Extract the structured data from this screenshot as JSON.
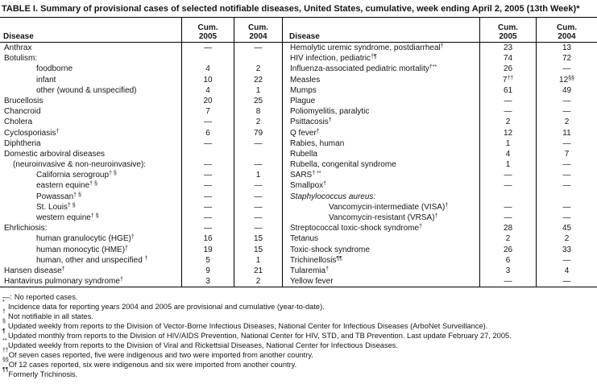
{
  "title": "TABLE I. Summary of provisional cases of selected notifiable diseases, United States, cumulative, week ending April 2, 2005 (13th Week)*",
  "header": {
    "disease": "Disease",
    "cum": "Cum.",
    "y2005": "2005",
    "y2004": "2004"
  },
  "left_rows": [
    {
      "label": "Anthrax",
      "sup": "",
      "indent": 0,
      "italic": false,
      "v2005": "—",
      "v2005_sup": "",
      "v2004": "—",
      "v2004_sup": ""
    },
    {
      "label": "Botulism:",
      "sup": "",
      "indent": 0,
      "italic": false,
      "v2005": "",
      "v2005_sup": "",
      "v2004": "",
      "v2004_sup": ""
    },
    {
      "label": "foodborne",
      "sup": "",
      "indent": 2,
      "italic": false,
      "v2005": "4",
      "v2005_sup": "",
      "v2004": "2",
      "v2004_sup": ""
    },
    {
      "label": "infant",
      "sup": "",
      "indent": 2,
      "italic": false,
      "v2005": "10",
      "v2005_sup": "",
      "v2004": "22",
      "v2004_sup": ""
    },
    {
      "label": "other (wound & unspecified)",
      "sup": "",
      "indent": 2,
      "italic": false,
      "v2005": "4",
      "v2005_sup": "",
      "v2004": "1",
      "v2004_sup": ""
    },
    {
      "label": "Brucellosis",
      "sup": "",
      "indent": 0,
      "italic": false,
      "v2005": "20",
      "v2005_sup": "",
      "v2004": "25",
      "v2004_sup": ""
    },
    {
      "label": "Chancroid",
      "sup": "",
      "indent": 0,
      "italic": false,
      "v2005": "7",
      "v2005_sup": "",
      "v2004": "8",
      "v2004_sup": ""
    },
    {
      "label": "Cholera",
      "sup": "",
      "indent": 0,
      "italic": false,
      "v2005": "—",
      "v2005_sup": "",
      "v2004": "2",
      "v2004_sup": ""
    },
    {
      "label": "Cyclosporiasis",
      "sup": "†",
      "indent": 0,
      "italic": false,
      "v2005": "6",
      "v2005_sup": "",
      "v2004": "79",
      "v2004_sup": ""
    },
    {
      "label": "Diphtheria",
      "sup": "",
      "indent": 0,
      "italic": false,
      "v2005": "—",
      "v2005_sup": "",
      "v2004": "—",
      "v2004_sup": ""
    },
    {
      "label": "Domestic arboviral diseases",
      "sup": "",
      "indent": 0,
      "italic": false,
      "v2005": "",
      "v2005_sup": "",
      "v2004": "",
      "v2004_sup": ""
    },
    {
      "label": "(neuroinvasive & non-neuroinvasive):",
      "sup": "",
      "indent": 1,
      "italic": false,
      "v2005": "—",
      "v2005_sup": "",
      "v2004": "—",
      "v2004_sup": ""
    },
    {
      "label": "California serogroup",
      "sup": "† §",
      "indent": 2,
      "italic": false,
      "v2005": "—",
      "v2005_sup": "",
      "v2004": "1",
      "v2004_sup": ""
    },
    {
      "label": "eastern equine",
      "sup": "† §",
      "indent": 2,
      "italic": false,
      "v2005": "—",
      "v2005_sup": "",
      "v2004": "—",
      "v2004_sup": ""
    },
    {
      "label": "Powassan",
      "sup": "† §",
      "indent": 2,
      "italic": false,
      "v2005": "—",
      "v2005_sup": "",
      "v2004": "—",
      "v2004_sup": ""
    },
    {
      "label": "St. Louis",
      "sup": "† §",
      "indent": 2,
      "italic": false,
      "v2005": "—",
      "v2005_sup": "",
      "v2004": "—",
      "v2004_sup": ""
    },
    {
      "label": "western equine",
      "sup": "† §",
      "indent": 2,
      "italic": false,
      "v2005": "—",
      "v2005_sup": "",
      "v2004": "—",
      "v2004_sup": ""
    },
    {
      "label": "Ehrlichiosis:",
      "sup": "",
      "indent": 0,
      "italic": false,
      "v2005": "—",
      "v2005_sup": "",
      "v2004": "—",
      "v2004_sup": ""
    },
    {
      "label": "human granulocytic (HGE)",
      "sup": "†",
      "indent": 2,
      "italic": false,
      "v2005": "16",
      "v2005_sup": "",
      "v2004": "15",
      "v2004_sup": ""
    },
    {
      "label": "human monocytic (HME)",
      "sup": "†",
      "indent": 2,
      "italic": false,
      "v2005": "19",
      "v2005_sup": "",
      "v2004": "15",
      "v2004_sup": ""
    },
    {
      "label": "human, other and unspecified ",
      "sup": "†",
      "indent": 2,
      "italic": false,
      "v2005": "5",
      "v2005_sup": "",
      "v2004": "1",
      "v2004_sup": ""
    },
    {
      "label": "Hansen disease",
      "sup": "†",
      "indent": 0,
      "italic": false,
      "v2005": "9",
      "v2005_sup": "",
      "v2004": "21",
      "v2004_sup": ""
    },
    {
      "label": "Hantavirus pulmonary syndrome",
      "sup": "†",
      "indent": 0,
      "italic": false,
      "v2005": "3",
      "v2005_sup": "",
      "v2004": "2",
      "v2004_sup": ""
    }
  ],
  "right_rows": [
    {
      "label": "Hemolytic uremic syndrome, postdiarrheal",
      "sup": "†",
      "indent": 0,
      "italic": false,
      "v2005": "23",
      "v2005_sup": "",
      "v2004": "13",
      "v2004_sup": ""
    },
    {
      "label": "HIV infection, pediatric",
      "sup": "†¶",
      "indent": 0,
      "italic": false,
      "v2005": "74",
      "v2005_sup": "",
      "v2004": "72",
      "v2004_sup": ""
    },
    {
      "label": "Influenza-associated pediatric mortality",
      "sup": "†**",
      "indent": 0,
      "italic": false,
      "v2005": "26",
      "v2005_sup": "",
      "v2004": "—",
      "v2004_sup": ""
    },
    {
      "label": "Measles",
      "sup": "",
      "indent": 0,
      "italic": false,
      "v2005": "7",
      "v2005_sup": "††",
      "v2004": "12",
      "v2004_sup": "§§"
    },
    {
      "label": "Mumps",
      "sup": "",
      "indent": 0,
      "italic": false,
      "v2005": "61",
      "v2005_sup": "",
      "v2004": "49",
      "v2004_sup": ""
    },
    {
      "label": "Plague",
      "sup": "",
      "indent": 0,
      "italic": false,
      "v2005": "—",
      "v2005_sup": "",
      "v2004": "—",
      "v2004_sup": ""
    },
    {
      "label": "Poliomyelitis, paralytic",
      "sup": "",
      "indent": 0,
      "italic": false,
      "v2005": "—",
      "v2005_sup": "",
      "v2004": "—",
      "v2004_sup": ""
    },
    {
      "label": "Psittacosis",
      "sup": "†",
      "indent": 0,
      "italic": false,
      "v2005": "2",
      "v2005_sup": "",
      "v2004": "2",
      "v2004_sup": ""
    },
    {
      "label": "Q fever",
      "sup": "†",
      "indent": 0,
      "italic": false,
      "v2005": "12",
      "v2005_sup": "",
      "v2004": "11",
      "v2004_sup": ""
    },
    {
      "label": "Rabies, human",
      "sup": "",
      "indent": 0,
      "italic": false,
      "v2005": "1",
      "v2005_sup": "",
      "v2004": "—",
      "v2004_sup": ""
    },
    {
      "label": "Rubella",
      "sup": "",
      "indent": 0,
      "italic": false,
      "v2005": "4",
      "v2005_sup": "",
      "v2004": "7",
      "v2004_sup": ""
    },
    {
      "label": "Rubella, congenital syndrome",
      "sup": "",
      "indent": 0,
      "italic": false,
      "v2005": "1",
      "v2005_sup": "",
      "v2004": "—",
      "v2004_sup": ""
    },
    {
      "label": "SARS",
      "sup": "† **",
      "indent": 0,
      "italic": false,
      "v2005": "—",
      "v2005_sup": "",
      "v2004": "—",
      "v2004_sup": ""
    },
    {
      "label": "Smallpox",
      "sup": "†",
      "indent": 0,
      "italic": false,
      "v2005": "—",
      "v2005_sup": "",
      "v2004": "—",
      "v2004_sup": ""
    },
    {
      "label": "Staphylococcus aureus:",
      "sup": "",
      "indent": 0,
      "italic": true,
      "v2005": "",
      "v2005_sup": "",
      "v2004": "",
      "v2004_sup": ""
    },
    {
      "label": "Vancomycin-intermediate (VISA)",
      "sup": "†",
      "indent": 3,
      "italic": false,
      "v2005": "—",
      "v2005_sup": "",
      "v2004": "—",
      "v2004_sup": ""
    },
    {
      "label": "Vancomycin-resistant (VRSA)",
      "sup": "†",
      "indent": 3,
      "italic": false,
      "v2005": "—",
      "v2005_sup": "",
      "v2004": "—",
      "v2004_sup": ""
    },
    {
      "label": "Streptococcal toxic-shock syndrome",
      "sup": "†",
      "indent": 0,
      "italic": false,
      "v2005": "28",
      "v2005_sup": "",
      "v2004": "45",
      "v2004_sup": ""
    },
    {
      "label": "Tetanus",
      "sup": "",
      "indent": 0,
      "italic": false,
      "v2005": "2",
      "v2005_sup": "",
      "v2004": "2",
      "v2004_sup": ""
    },
    {
      "label": "Toxic-shock syndrome",
      "sup": "",
      "indent": 0,
      "italic": false,
      "v2005": "26",
      "v2005_sup": "",
      "v2004": "33",
      "v2004_sup": ""
    },
    {
      "label": "Trichinellosis",
      "sup": "¶¶",
      "indent": 0,
      "italic": false,
      "v2005": "6",
      "v2005_sup": "",
      "v2004": "—",
      "v2004_sup": ""
    },
    {
      "label": "Tularemia",
      "sup": "†",
      "indent": 0,
      "italic": false,
      "v2005": "3",
      "v2005_sup": "",
      "v2004": "4",
      "v2004_sup": ""
    },
    {
      "label": "Yellow fever",
      "sup": "",
      "indent": 0,
      "italic": false,
      "v2005": "—",
      "v2005_sup": "",
      "v2004": "—",
      "v2004_sup": ""
    }
  ],
  "footnotes": [
    {
      "marker": "—:",
      "marker_is_sup": false,
      "text": "No reported cases."
    },
    {
      "marker": "*",
      "marker_is_sup": true,
      "text": "Incidence data for reporting years 2004 and 2005 are provisional and cumulative (year-to-date)."
    },
    {
      "marker": "†",
      "marker_is_sup": true,
      "text": "Not notifiable in all states."
    },
    {
      "marker": "§",
      "marker_is_sup": true,
      "text": "Updated weekly from reports to the Division of Vector-Borne Infectious Diseases, National Center for Infectious Diseases (ArboNet Surveillance)."
    },
    {
      "marker": "¶",
      "marker_is_sup": true,
      "text": "Updated monthly from reports to the Division of HIV/AIDS Prevention, National Center for HIV, STD, and TB Prevention. Last update February 27, 2005."
    },
    {
      "marker": "**",
      "marker_is_sup": true,
      "text": "Updated weekly from reports to the Division of Viral and Rickettsial Diseases, National Center for Infectious Diseases."
    },
    {
      "marker": "††",
      "marker_is_sup": true,
      "text": "Of seven cases reported, five were indigenous and two were imported from another country."
    },
    {
      "marker": "§§",
      "marker_is_sup": true,
      "text": "Of 12 cases reported, six were indigenous and six were imported from another country."
    },
    {
      "marker": "¶¶",
      "marker_is_sup": true,
      "text": "Formerly Trichinosis."
    }
  ]
}
